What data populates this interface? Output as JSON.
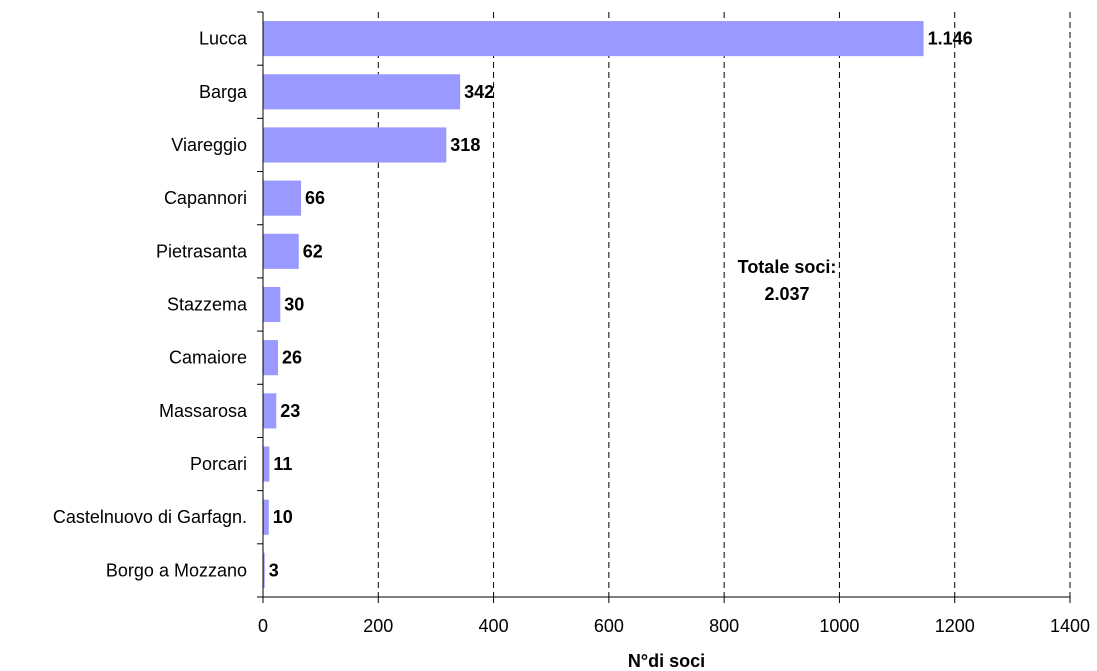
{
  "chart_data": {
    "type": "bar",
    "orientation": "horizontal",
    "categories": [
      "Lucca",
      "Barga",
      "Viareggio",
      "Capannori",
      "Pietrasanta",
      "Stazzema",
      "Camaiore",
      "Massarosa",
      "Porcari",
      "Castelnuovo di Garfagn.",
      "Borgo a Mozzano"
    ],
    "values": [
      1146,
      342,
      318,
      66,
      62,
      30,
      26,
      23,
      11,
      10,
      3
    ],
    "value_labels": [
      "1.146",
      "342",
      "318",
      "66",
      "62",
      "30",
      "26",
      "23",
      "11",
      "10",
      "3"
    ],
    "xlabel": "N°di soci",
    "ylabel": "",
    "xlim": [
      0,
      1400
    ],
    "x_ticks": [
      0,
      200,
      400,
      600,
      800,
      1000,
      1200,
      1400
    ],
    "grid": "vertical dashed",
    "bar_color": "#9999ff",
    "annotation": {
      "line1": "Totale soci:",
      "line2": "2.037"
    }
  }
}
